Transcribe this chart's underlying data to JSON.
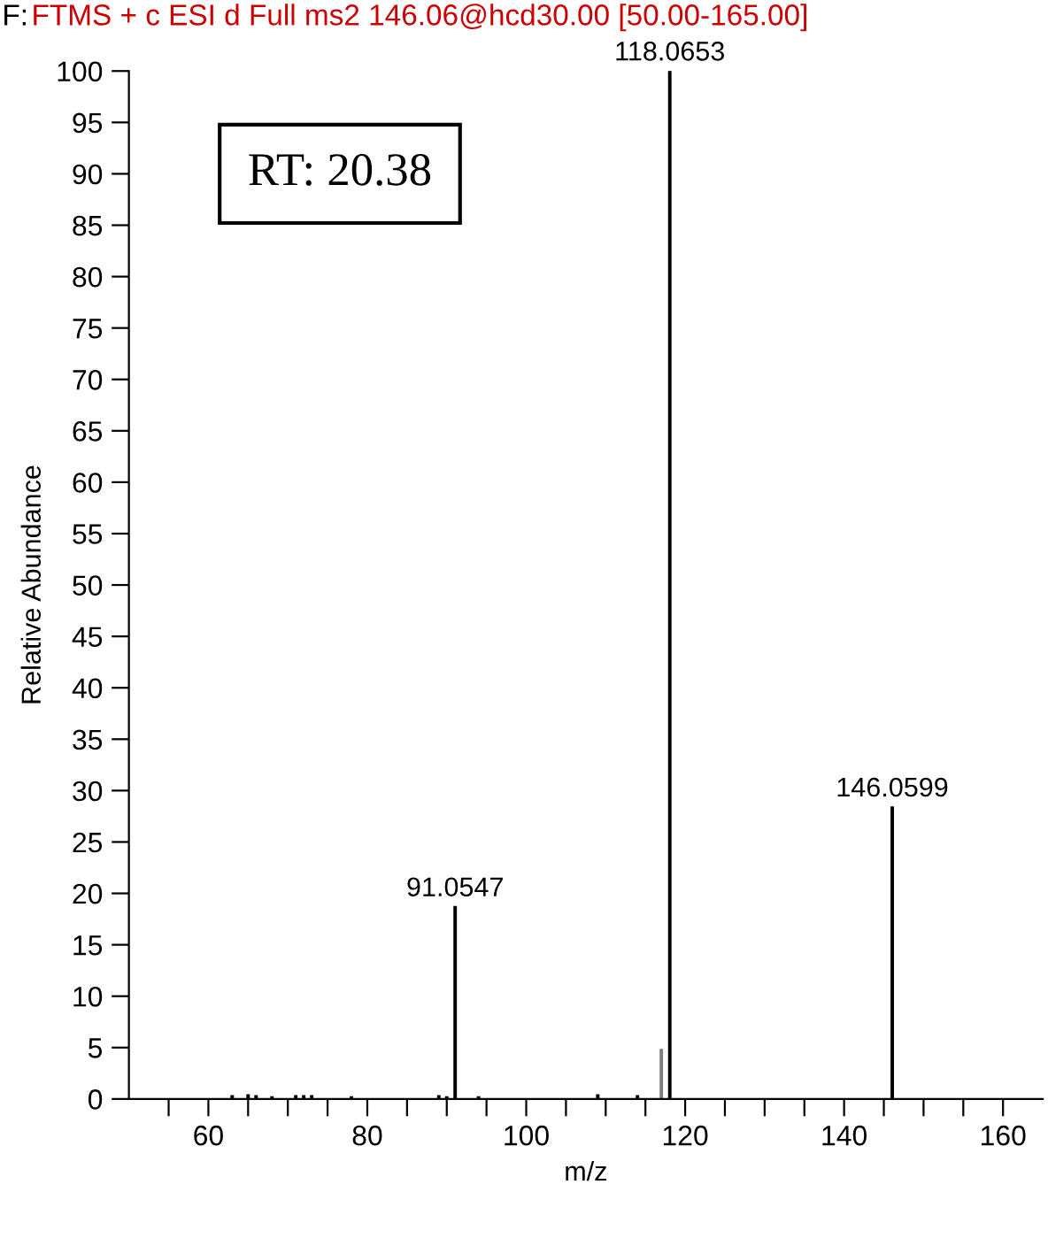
{
  "chart_data": {
    "type": "bar",
    "title": "FTMS + c ESI d Full ms2 146.06@hcd30.00 [50.00-165.00]",
    "xlabel": "m/z",
    "ylabel": "Relative Abundance",
    "annotations": [
      "F:",
      "RT: 20.38",
      {
        "text": "91.0547",
        "x": 91.0547,
        "y": 18.7
      },
      {
        "text": "118.0653",
        "x": 118.0653,
        "y": 100
      },
      {
        "text": "146.0599",
        "x": 146.0599,
        "y": 28.4
      }
    ],
    "x": [
      63.0,
      65.0,
      66.0,
      68.0,
      71.0,
      72.0,
      73.0,
      78.0,
      89.0,
      90.0,
      91.0547,
      94.0,
      109.0,
      114.0,
      117.0,
      118.0653,
      146.0599
    ],
    "values": [
      0.3,
      0.4,
      0.3,
      0.2,
      0.3,
      0.3,
      0.3,
      0.2,
      0.3,
      0.2,
      18.7,
      0.2,
      0.4,
      0.3,
      4.8,
      100,
      28.4
    ],
    "colors": [
      "#000000",
      "#000000",
      "#000000",
      "#000000",
      "#000000",
      "#000000",
      "#000000",
      "#000000",
      "#000000",
      "#000000",
      "#000000",
      "#000000",
      "#000000",
      "#000000",
      "#7f7f7f",
      "#000000",
      "#000000"
    ],
    "xlim": [
      50,
      165
    ],
    "xticks": [
      {
        "value": 55,
        "label": null
      },
      60,
      {
        "value": 65,
        "label": null
      },
      {
        "value": 70,
        "label": null
      },
      {
        "value": 75,
        "label": null
      },
      80,
      {
        "value": 85,
        "label": null
      },
      {
        "value": 90,
        "label": null
      },
      {
        "value": 95,
        "label": null
      },
      100,
      {
        "value": 105,
        "label": null
      },
      {
        "value": 110,
        "label": null
      },
      {
        "value": 115,
        "label": null
      },
      120,
      {
        "value": 125,
        "label": null
      },
      {
        "value": 130,
        "label": null
      },
      {
        "value": 135,
        "label": null
      },
      140,
      {
        "value": 145,
        "label": null
      },
      {
        "value": 150,
        "label": null
      },
      {
        "value": 155,
        "label": null
      },
      160
    ],
    "ylim": [
      0,
      100
    ],
    "yticks": [
      0,
      5,
      10,
      15,
      20,
      25,
      30,
      35,
      40,
      45,
      50,
      55,
      60,
      65,
      70,
      75,
      80,
      85,
      90,
      95,
      100
    ],
    "grid": false,
    "legend": false
  }
}
